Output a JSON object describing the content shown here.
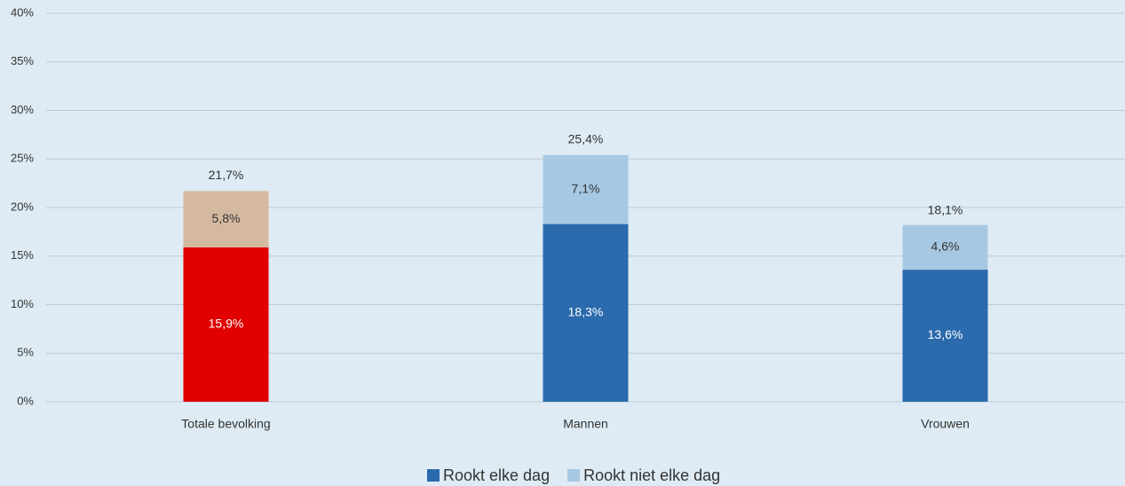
{
  "chart_data": {
    "type": "stacked_bar",
    "categories": [
      "Totale bevolking",
      "Mannen",
      "Vrouwen"
    ],
    "series": [
      {
        "name": "Rookt elke dag",
        "color": "#2a6aad",
        "colors": [
          "#e00000",
          "#2a6aad",
          "#2a6aad"
        ],
        "values": [
          15.9,
          18.3,
          13.6
        ],
        "value_labels": [
          "15,9%",
          "18,3%",
          "13,6%"
        ]
      },
      {
        "name": "Rookt niet elke dag",
        "color": "#a7c8e3",
        "colors": [
          "#d4b9a0",
          "#a7c8e3",
          "#a7c8e3"
        ],
        "values": [
          5.8,
          7.1,
          4.6
        ],
        "value_labels": [
          "5,8%",
          "7,1%",
          "4,6%"
        ]
      }
    ],
    "totals": [
      21.7,
      25.4,
      18.1
    ],
    "total_labels": [
      "21,7%",
      "25,4%",
      "18,1%"
    ],
    "ylim": [
      0,
      40
    ],
    "yticks": [
      {
        "value": 0,
        "label": "0%"
      },
      {
        "value": 5,
        "label": "5%"
      },
      {
        "value": 10,
        "label": "10%"
      },
      {
        "value": 15,
        "label": "15%"
      },
      {
        "value": 20,
        "label": "20%"
      },
      {
        "value": 25,
        "label": "25%"
      },
      {
        "value": 30,
        "label": "30%"
      },
      {
        "value": 35,
        "label": "35%"
      },
      {
        "value": 40,
        "label": "40%"
      }
    ],
    "grid": true,
    "legend": "bottom"
  }
}
